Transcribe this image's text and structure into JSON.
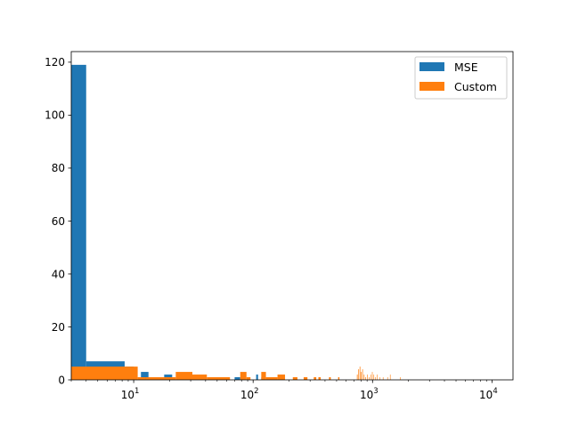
{
  "chart_data": {
    "type": "bar",
    "subtype": "overlaid-histogram",
    "title": "",
    "xlabel": "",
    "ylabel": "",
    "xscale": "log",
    "xlim": [
      3,
      15000
    ],
    "ylim": [
      0,
      124
    ],
    "yticks": [
      0,
      20,
      40,
      60,
      80,
      100,
      120
    ],
    "xticks": [
      {
        "value": 10,
        "label": "10",
        "exp": "1"
      },
      {
        "value": 100,
        "label": "10",
        "exp": "2"
      },
      {
        "value": 1000,
        "label": "10",
        "exp": "3"
      },
      {
        "value": 10000,
        "label": "10",
        "exp": "4"
      }
    ],
    "grid": false,
    "legend": {
      "placement": "top-right"
    },
    "series": [
      {
        "name": "MSE",
        "color": "#1f77b4",
        "bins": [
          {
            "x0": 3.0,
            "x1": 4.0,
            "count": 119
          },
          {
            "x0": 4.0,
            "x1": 8.4,
            "count": 7
          },
          {
            "x0": 8.4,
            "x1": 10.0,
            "count": 5
          },
          {
            "x0": 11.5,
            "x1": 13.3,
            "count": 3
          },
          {
            "x0": 18.0,
            "x1": 21.0,
            "count": 2
          },
          {
            "x0": 70.0,
            "x1": 78.0,
            "count": 1
          },
          {
            "x0": 106.0,
            "x1": 110.0,
            "count": 2
          },
          {
            "x0": 117.0,
            "x1": 121.0,
            "count": 1
          }
        ]
      },
      {
        "name": "Custom",
        "color": "#ff7f0e",
        "bins": [
          {
            "x0": 3.0,
            "x1": 10.8,
            "count": 5
          },
          {
            "x0": 10.8,
            "x1": 12.5,
            "count": 1
          },
          {
            "x0": 12.5,
            "x1": 18.5,
            "count": 1
          },
          {
            "x0": 18.5,
            "x1": 22.5,
            "count": 1
          },
          {
            "x0": 22.5,
            "x1": 31.0,
            "count": 3
          },
          {
            "x0": 31.0,
            "x1": 41.0,
            "count": 2
          },
          {
            "x0": 41.0,
            "x1": 64.0,
            "count": 1
          },
          {
            "x0": 78.0,
            "x1": 88.0,
            "count": 3
          },
          {
            "x0": 88.0,
            "x1": 95.0,
            "count": 1
          },
          {
            "x0": 117.0,
            "x1": 128.0,
            "count": 3
          },
          {
            "x0": 128.0,
            "x1": 160.0,
            "count": 1
          },
          {
            "x0": 160.0,
            "x1": 185.0,
            "count": 2
          },
          {
            "x0": 215.0,
            "x1": 235.0,
            "count": 1
          },
          {
            "x0": 265.0,
            "x1": 285.0,
            "count": 1
          },
          {
            "x0": 322.0,
            "x1": 338.0,
            "count": 1
          },
          {
            "x0": 352.0,
            "x1": 368.0,
            "count": 1
          },
          {
            "x0": 432.0,
            "x1": 447.0,
            "count": 1
          },
          {
            "x0": 515.0,
            "x1": 528.0,
            "count": 1
          },
          {
            "x0": 740.0,
            "x1": 750.0,
            "count": 2
          },
          {
            "x0": 760.0,
            "x1": 770.0,
            "count": 4
          },
          {
            "x0": 780.0,
            "x1": 790.0,
            "count": 5
          },
          {
            "x0": 800.0,
            "x1": 810.0,
            "count": 3
          },
          {
            "x0": 820.0,
            "x1": 830.0,
            "count": 4
          },
          {
            "x0": 845.0,
            "x1": 855.0,
            "count": 2
          },
          {
            "x0": 870.0,
            "x1": 880.0,
            "count": 1
          },
          {
            "x0": 900.0,
            "x1": 910.0,
            "count": 2
          },
          {
            "x0": 930.0,
            "x1": 940.0,
            "count": 1
          },
          {
            "x0": 960.0,
            "x1": 970.0,
            "count": 2
          },
          {
            "x0": 990.0,
            "x1": 1000.0,
            "count": 3
          },
          {
            "x0": 1020.0,
            "x1": 1030.0,
            "count": 2
          },
          {
            "x0": 1050.0,
            "x1": 1060.0,
            "count": 1
          },
          {
            "x0": 1090.0,
            "x1": 1100.0,
            "count": 2
          },
          {
            "x0": 1150.0,
            "x1": 1160.0,
            "count": 1
          },
          {
            "x0": 1220.0,
            "x1": 1230.0,
            "count": 1
          },
          {
            "x0": 1330.0,
            "x1": 1340.0,
            "count": 1
          },
          {
            "x0": 1400.0,
            "x1": 1410.0,
            "count": 2
          },
          {
            "x0": 1700.0,
            "x1": 1712.0,
            "count": 1
          }
        ]
      }
    ]
  }
}
